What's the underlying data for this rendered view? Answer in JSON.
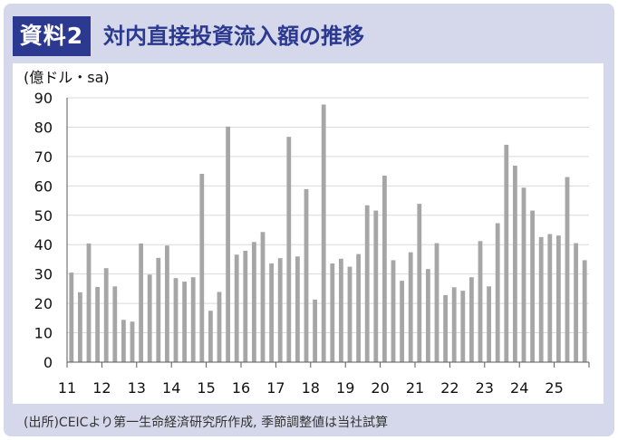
{
  "header": {
    "tag": "資料2",
    "title": "対内直接投資流入額の推移"
  },
  "unit_label": "(億ドル・sa)",
  "source": "(出所)CEICより第一生命経済研究所作成, 季節調整値は当社試算",
  "colors": {
    "accent": "#2b3990",
    "panel_bg": "#d5d8ea",
    "bar": "#a6a6a6",
    "grid": "#d9d9d9"
  },
  "chart_data": {
    "type": "bar",
    "title": "対内直接投資流入額の推移",
    "ylabel": "(億ドル・sa)",
    "xlabel": "",
    "ylim": [
      0,
      90
    ],
    "yticks": [
      0,
      10,
      20,
      30,
      40,
      50,
      60,
      70,
      80,
      90
    ],
    "grid": true,
    "frequency": "quarterly",
    "year_labels": [
      "11",
      "12",
      "13",
      "14",
      "15",
      "16",
      "17",
      "18",
      "19",
      "20",
      "21",
      "22",
      "23",
      "24",
      "25"
    ],
    "values": [
      30.5,
      23.8,
      40.4,
      25.6,
      32.0,
      25.8,
      14.4,
      13.8,
      40.4,
      29.8,
      35.5,
      39.7,
      28.6,
      27.4,
      28.9,
      64.1,
      17.5,
      23.9,
      80.2,
      36.6,
      37.9,
      40.9,
      44.3,
      33.6,
      35.4,
      76.7,
      36.0,
      58.9,
      21.3,
      87.7,
      33.6,
      35.2,
      32.5,
      36.8,
      53.4,
      51.6,
      63.5,
      34.7,
      27.7,
      37.4,
      53.9,
      31.7,
      40.5,
      22.8,
      25.5,
      24.3,
      28.9,
      41.2,
      25.8,
      47.3,
      74.0,
      66.9,
      59.4,
      51.6,
      42.6,
      43.6,
      43.1,
      63.0,
      40.5,
      34.7
    ]
  }
}
